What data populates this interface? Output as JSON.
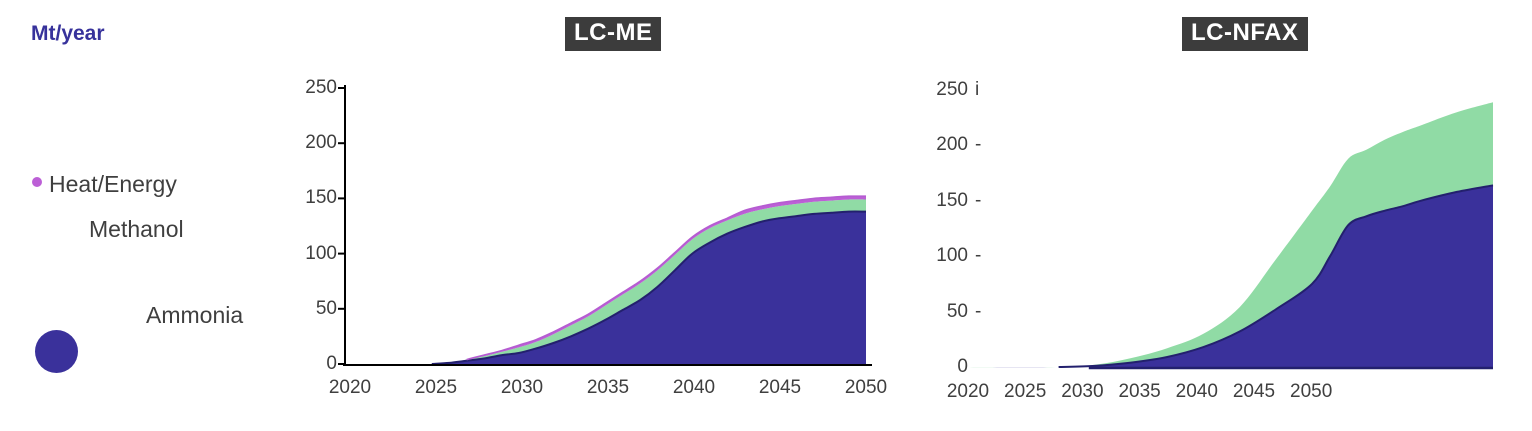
{
  "page": {
    "y_axis_unit": "Mt/year"
  },
  "legend": {
    "items": [
      {
        "label": "Heat/Energy",
        "marker": "dot",
        "color": "#bc5fd6"
      },
      {
        "label": "Methanol",
        "marker": "none",
        "color": "#90dba5"
      },
      {
        "label": "Ammonia",
        "marker": "circle",
        "color": "#3a319b"
      }
    ]
  },
  "colors": {
    "ammonia": "#3a319b",
    "methanol": "#90dba5",
    "heat_energy": "#bc5fd6",
    "ammonia_edge": "#23206e",
    "heat_edge": "#b55cd1",
    "title_bg": "#3c3c3c",
    "title_text": "#ffffff",
    "unit_label": "#37329b",
    "axis_text": "#3f3f3f",
    "axis_line": "#000000"
  },
  "chart_data": [
    {
      "type": "area",
      "stacked": true,
      "title": "LC-ME",
      "xlabel": "",
      "ylabel": "Mt/year",
      "xlim": [
        2020,
        2050
      ],
      "ylim": [
        0,
        250
      ],
      "grid": false,
      "axis_lines": true,
      "x": [
        2020,
        2025,
        2026,
        2027,
        2028,
        2029,
        2030,
        2031,
        2032,
        2033,
        2034,
        2035,
        2036,
        2037,
        2038,
        2039,
        2040,
        2041,
        2042,
        2043,
        2044,
        2045,
        2046,
        2047,
        2048,
        2049,
        2050
      ],
      "series": [
        {
          "name": "Ammonia",
          "color": "#3a319b",
          "values": [
            0,
            0,
            1,
            3,
            5,
            8,
            10,
            14,
            19,
            25,
            32,
            40,
            49,
            58,
            70,
            85,
            100,
            110,
            118,
            124,
            129,
            132,
            134,
            136,
            137,
            138,
            138
          ]
        },
        {
          "name": "Methanol",
          "color": "#90dba5",
          "values": [
            0,
            0,
            0,
            1,
            2,
            3,
            5,
            6,
            8,
            10,
            11,
            13,
            14,
            15,
            15,
            14,
            13,
            13,
            12,
            12,
            11,
            11,
            11,
            11,
            11,
            11,
            11
          ]
        },
        {
          "name": "Heat/Energy",
          "color": "#bc5fd6",
          "values": [
            0,
            0,
            0,
            0,
            1,
            1,
            2,
            2,
            2,
            2,
            2,
            2,
            2,
            2,
            2,
            2,
            2,
            2,
            2,
            3,
            3,
            3,
            3,
            3,
            3,
            3,
            3
          ]
        }
      ],
      "x_ticks": [
        "2020",
        "2025",
        "2030",
        "2035",
        "2040",
        "2045",
        "2050"
      ],
      "y_ticks": [
        {
          "label": "250",
          "tick": ""
        },
        {
          "label": "200",
          "tick": ""
        },
        {
          "label": "150",
          "tick": ""
        },
        {
          "label": "100",
          "tick": ""
        },
        {
          "label": "50",
          "tick": ""
        },
        {
          "label": "0",
          "tick": ""
        }
      ]
    },
    {
      "type": "area",
      "stacked": true,
      "title": "LC-NFAX",
      "xlabel": "",
      "ylabel": "Mt/year",
      "xlim": [
        2020,
        2050
      ],
      "ylim": [
        0,
        250
      ],
      "grid": false,
      "axis_lines": false,
      "x": [
        2020,
        2026,
        2028,
        2030,
        2032,
        2034,
        2036,
        2038,
        2040,
        2041,
        2042,
        2043,
        2044,
        2045,
        2046,
        2048,
        2050
      ],
      "series": [
        {
          "name": "Ammonia",
          "color": "#3a319b",
          "values": [
            0,
            0,
            1,
            4,
            9,
            18,
            32,
            52,
            75,
            100,
            128,
            136,
            141,
            145,
            150,
            158,
            164
          ]
        },
        {
          "name": "Methanol",
          "color": "#90dba5",
          "values": [
            0,
            0,
            1,
            4,
            8,
            12,
            22,
            45,
            66,
            63,
            60,
            60,
            64,
            67,
            68,
            72,
            75
          ]
        }
      ],
      "x_ticks": [
        "2020",
        "2025",
        "2030",
        "2035",
        "2040",
        "2045",
        "2050"
      ],
      "y_ticks": [
        {
          "label": "250",
          "tick": "i"
        },
        {
          "label": "200",
          "tick": "-"
        },
        {
          "label": "150",
          "tick": "-"
        },
        {
          "label": "100",
          "tick": "-"
        },
        {
          "label": "50",
          "tick": "-"
        },
        {
          "label": "0",
          "tick": ""
        }
      ]
    }
  ]
}
